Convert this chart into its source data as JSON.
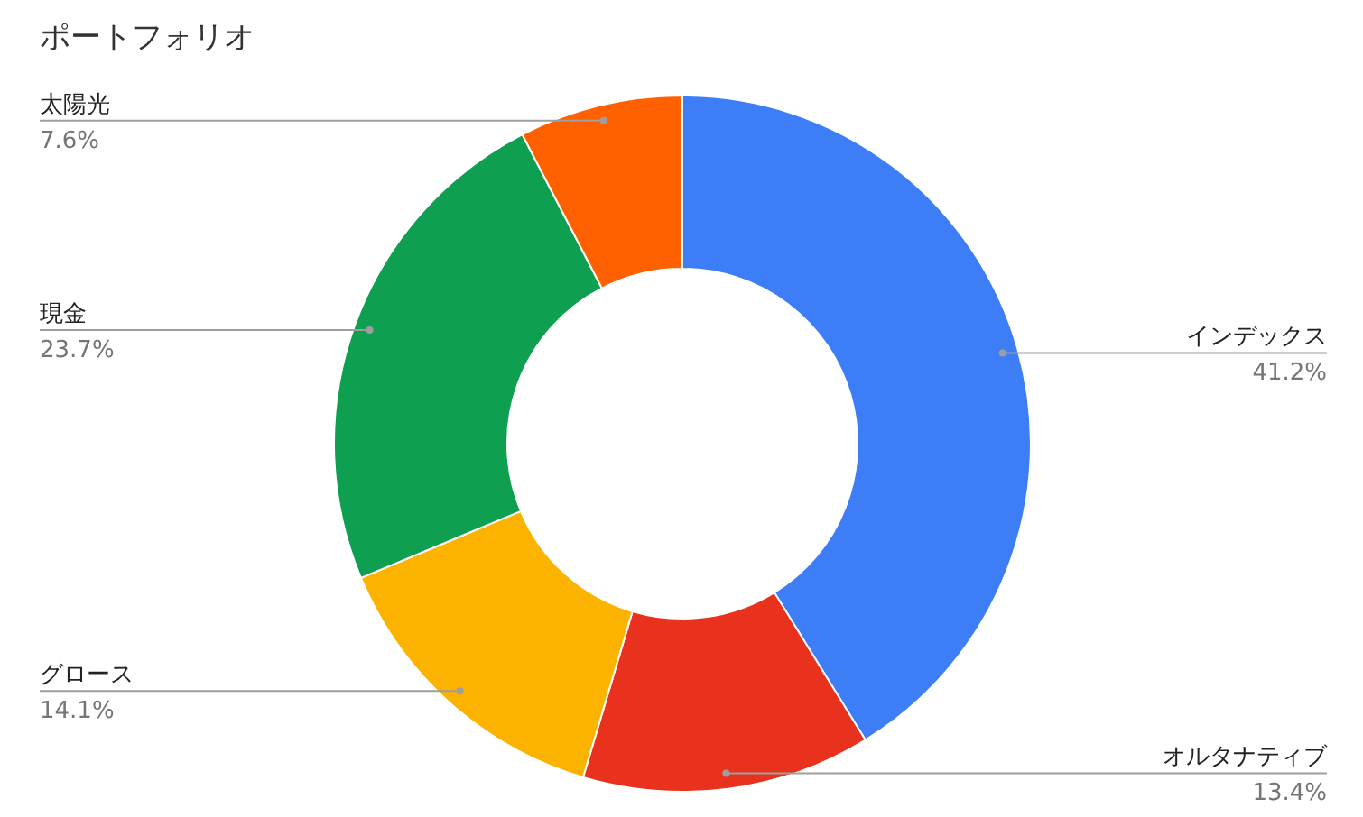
{
  "chart_data": {
    "type": "donut",
    "title": "ポートフォリオ",
    "categories": [
      "インデックス",
      "オルタナティブ",
      "グロース",
      "現金",
      "太陽光"
    ],
    "values": [
      41.2,
      13.4,
      14.1,
      23.7,
      7.6
    ],
    "value_labels": [
      "41.2%",
      "13.4%",
      "14.1%",
      "23.7%",
      "7.6%"
    ],
    "colors": [
      "#3d7ef7",
      "#e8321e",
      "#fbb300",
      "#0ea050",
      "#ff6000"
    ]
  }
}
